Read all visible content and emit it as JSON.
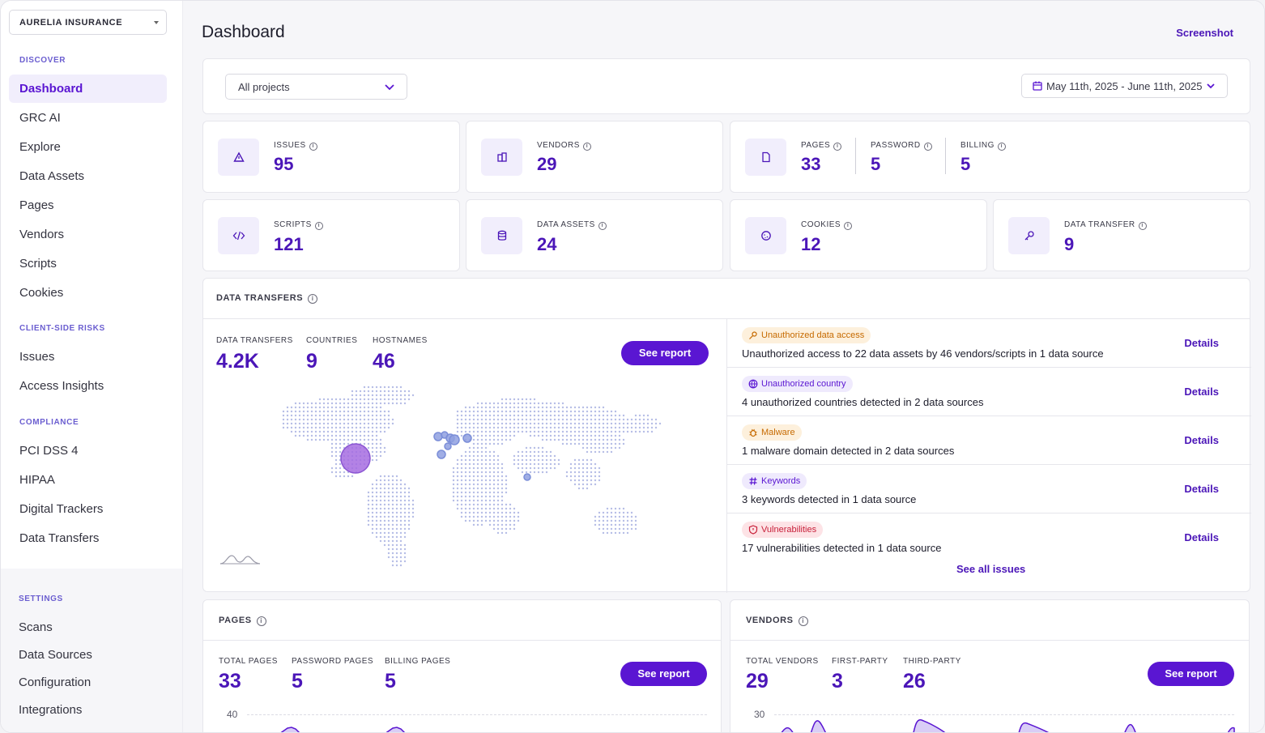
{
  "sidebar": {
    "org_name": "AURELIA INSURANCE",
    "discover_label": "DISCOVER",
    "discover_items": [
      "Dashboard",
      "GRC AI",
      "Explore",
      "Data Assets",
      "Pages",
      "Vendors",
      "Scripts",
      "Cookies"
    ],
    "risks_label": "CLIENT-SIDE RISKS",
    "risks_items": [
      "Issues",
      "Access Insights"
    ],
    "compliance_label": "COMPLIANCE",
    "compliance_items": [
      "PCI DSS 4",
      "HIPAA",
      "Digital Trackers",
      "Data Transfers"
    ],
    "settings_label": "SETTINGS",
    "settings_items": [
      "Scans",
      "Data Sources",
      "Configuration",
      "Integrations"
    ],
    "active_item": "Dashboard"
  },
  "header": {
    "title": "Dashboard",
    "screenshot_label": "Screenshot"
  },
  "filters": {
    "project": "All projects",
    "date_range": "May 11th, 2025 - June 11th, 2025"
  },
  "stats": {
    "issues": {
      "label": "ISSUES",
      "value": "95"
    },
    "vendors": {
      "label": "VENDORS",
      "value": "29"
    },
    "pages": {
      "label": "PAGES",
      "value": "33"
    },
    "password": {
      "label": "PASSWORD",
      "value": "5"
    },
    "billing": {
      "label": "BILLING",
      "value": "5"
    },
    "scripts": {
      "label": "SCRIPTS",
      "value": "121"
    },
    "data_assets": {
      "label": "DATA ASSETS",
      "value": "24"
    },
    "cookies": {
      "label": "COOKIES",
      "value": "12"
    },
    "data_transfer": {
      "label": "DATA TRANSFER",
      "value": "9"
    }
  },
  "data_transfers": {
    "title": "DATA TRANSFERS",
    "metrics": [
      {
        "label": "DATA TRANSFERS",
        "value": "4.2K"
      },
      {
        "label": "COUNTRIES",
        "value": "9"
      },
      {
        "label": "HOSTNAMES",
        "value": "46"
      }
    ],
    "see_report": "See report",
    "issues": [
      {
        "chip": "Unauthorized data access",
        "text": "Unauthorized access to 22 data assets by 46 vendors/scripts in 1 data source",
        "link": "Details"
      },
      {
        "chip": "Unauthorized country",
        "text": "4 unauthorized countries detected in 2 data sources",
        "link": "Details"
      },
      {
        "chip": "Malware",
        "text": "1 malware domain detected in 2 data sources",
        "link": "Details"
      },
      {
        "chip": "Keywords",
        "text": "3 keywords detected in 1 data source",
        "link": "Details"
      },
      {
        "chip": "Vulnerabilities",
        "text": "17 vulnerabilities detected in 1 data source",
        "link": "Details"
      }
    ],
    "see_all": "See all issues"
  },
  "pages_panel": {
    "title": "PAGES",
    "metrics": [
      {
        "label": "TOTAL PAGES",
        "value": "33"
      },
      {
        "label": "PASSWORD PAGES",
        "value": "5"
      },
      {
        "label": "BILLING PAGES",
        "value": "5"
      }
    ],
    "see_report": "See report",
    "axis_top": "40"
  },
  "vendors_panel": {
    "title": "VENDORS",
    "metrics": [
      {
        "label": "TOTAL VENDORS",
        "value": "29"
      },
      {
        "label": "FIRST-PARTY",
        "value": "3"
      },
      {
        "label": "THIRD-PARTY",
        "value": "26"
      }
    ],
    "see_report": "See report",
    "axis_top": "30"
  },
  "colors": {
    "accent": "#5a16d2",
    "accent_text": "#4b16b8",
    "icon_bg": "#f1eefc"
  }
}
